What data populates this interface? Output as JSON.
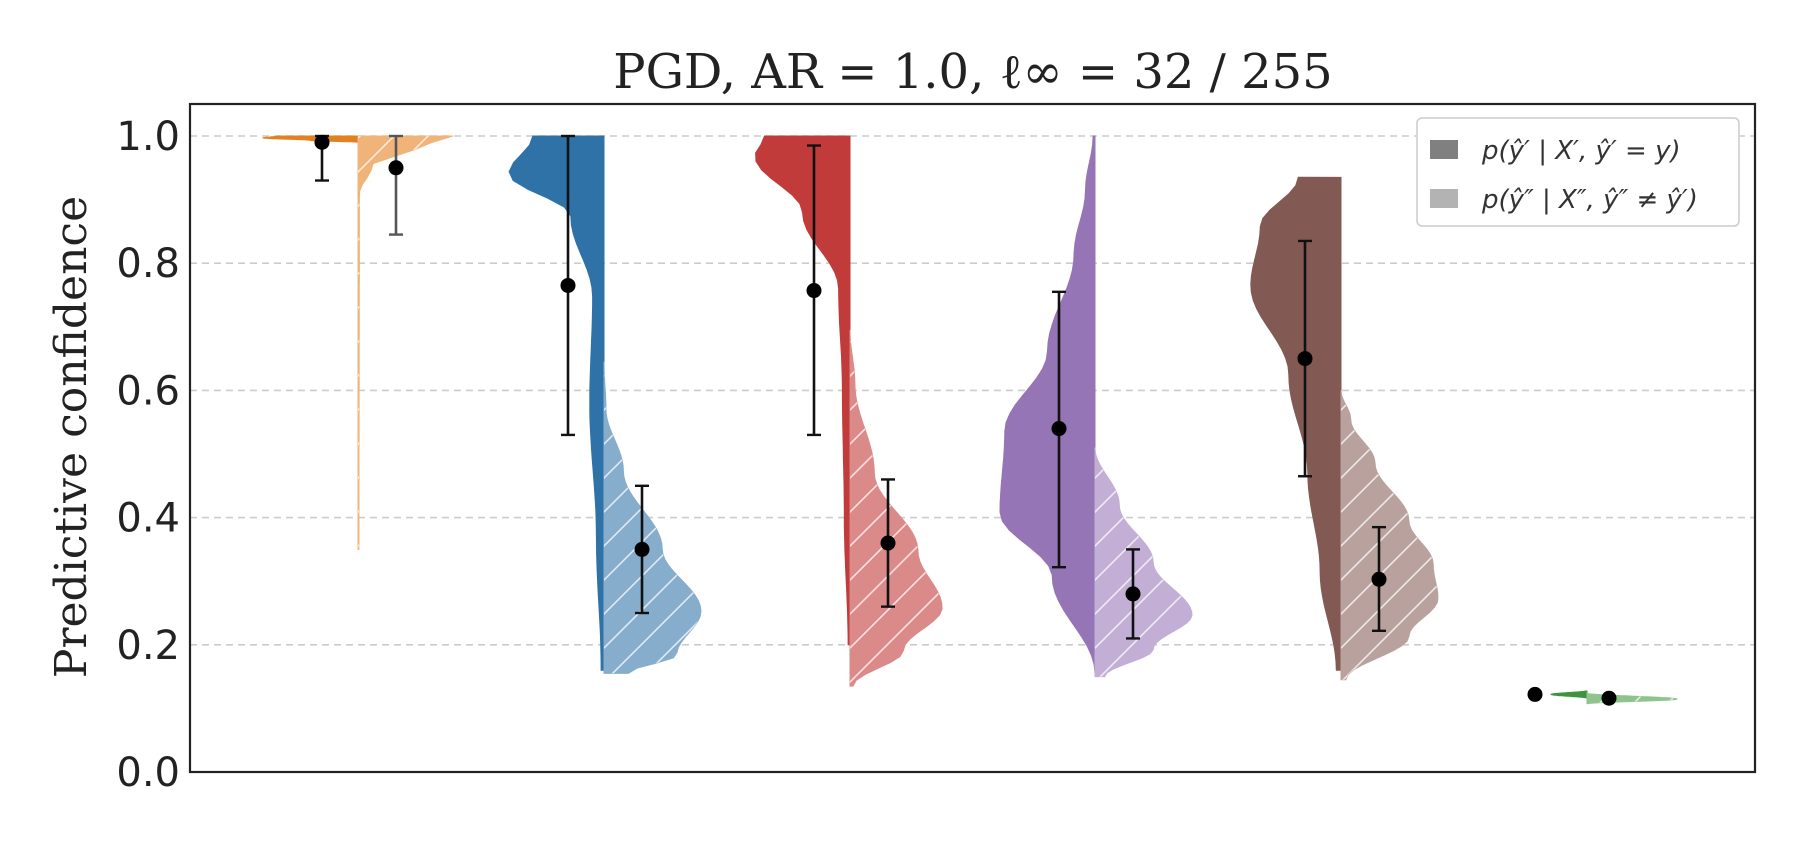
{
  "chart_data": {
    "type": "violin",
    "title": "PGD, AR = 1.0, ℓ∞ = 32 / 255",
    "ylabel": "Predictive confidence",
    "xlabel": "",
    "ylim": [
      0,
      1.0
    ],
    "yticks": [
      "0.0",
      "0.2",
      "0.4",
      "0.6",
      "0.8",
      "1.0"
    ],
    "grid": "horizontal dashed",
    "legend_placement": "top-right",
    "legend": [
      {
        "label": "p(ŷ′ | X′, ŷ′ = y)",
        "color": "#808080"
      },
      {
        "label": "p(ŷ″ | X″, ŷ″ ≠ ŷ′)",
        "color": "#b3b3b3"
      }
    ],
    "groups": [
      {
        "color": "#e3801f",
        "light_color": "#f0b47a",
        "left": {
          "mean": 0.99,
          "err": [
            0.93,
            1.0
          ],
          "range": [
            0.99,
            1.0
          ]
        },
        "right": {
          "mean": 0.95,
          "err": [
            0.845,
            1.0
          ],
          "range": [
            0.35,
            1.0
          ]
        }
      },
      {
        "color": "#2e72a8",
        "light_color": "#86adcb",
        "left": {
          "mean": 0.765,
          "err": [
            0.53,
            1.0
          ],
          "range": [
            0.16,
            1.0
          ]
        },
        "right": {
          "mean": 0.35,
          "err": [
            0.25,
            0.45
          ],
          "range": [
            0.155,
            0.645
          ]
        }
      },
      {
        "color": "#c23b3b",
        "light_color": "#da8a89",
        "left": {
          "mean": 0.757,
          "err": [
            0.53,
            0.985
          ],
          "range": [
            0.2,
            1.0
          ]
        },
        "right": {
          "mean": 0.36,
          "err": [
            0.26,
            0.46
          ],
          "range": [
            0.135,
            0.695
          ]
        }
      },
      {
        "color": "#9575b5",
        "light_color": "#c3afd6",
        "left": {
          "mean": 0.54,
          "err": [
            0.322,
            0.755
          ],
          "range": [
            0.155,
            1.0
          ]
        },
        "right": {
          "mean": 0.28,
          "err": [
            0.21,
            0.35
          ],
          "range": [
            0.15,
            0.51
          ]
        }
      },
      {
        "color": "#825a53",
        "light_color": "#b9a29e",
        "left": {
          "mean": 0.65,
          "err": [
            0.465,
            0.835
          ],
          "range": [
            0.16,
            0.935
          ]
        },
        "right": {
          "mean": 0.303,
          "err": [
            0.222,
            0.385
          ],
          "range": [
            0.145,
            0.6
          ]
        }
      },
      {
        "color": "#3d943d",
        "light_color": "#8fc48f",
        "left": {
          "mean": 0.122,
          "err": [
            0.121,
            0.123
          ],
          "range": [
            0.116,
            0.128
          ]
        },
        "right": {
          "mean": 0.116,
          "err": [
            0.115,
            0.117
          ],
          "range": [
            0.107,
            0.124
          ]
        }
      }
    ]
  }
}
